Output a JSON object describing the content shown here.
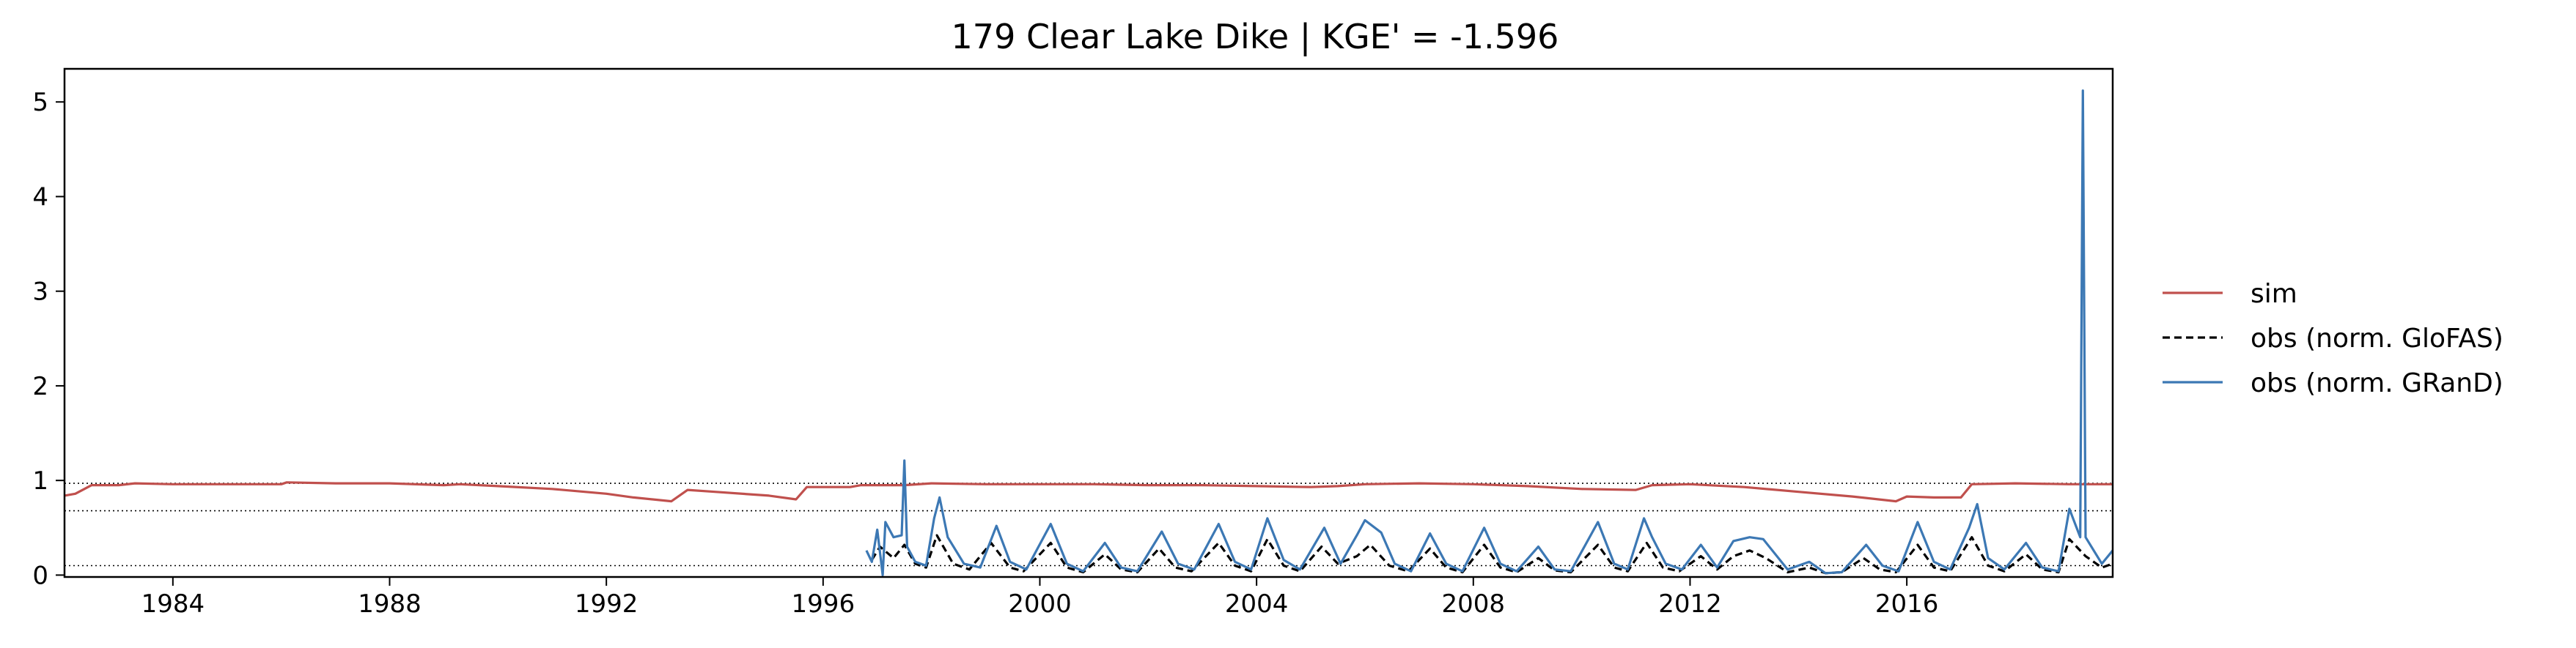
{
  "chart_data": {
    "type": "line",
    "title": "179  Clear Lake Dike | KGE' = -1.596",
    "xlabel": "",
    "ylabel": "",
    "xlim": [
      1982.0,
      2019.8
    ],
    "ylim": [
      -0.02,
      5.35
    ],
    "x_ticks": [
      1984,
      1988,
      1992,
      1996,
      2000,
      2004,
      2008,
      2012,
      2016
    ],
    "x_tick_labels": [
      "1984",
      "1988",
      "1992",
      "1996",
      "2000",
      "2004",
      "2008",
      "2012",
      "2016"
    ],
    "y_ticks": [
      0,
      1,
      2,
      3,
      4,
      5
    ],
    "y_tick_labels": [
      "0",
      "1",
      "2",
      "3",
      "4",
      "5"
    ],
    "reference_lines": [
      {
        "y": 0.97,
        "style": "dotted",
        "color": "#000000"
      },
      {
        "y": 0.68,
        "style": "dotted",
        "color": "#000000"
      },
      {
        "y": 0.1,
        "style": "dotted",
        "color": "#000000"
      }
    ],
    "legend_position": "right-outside",
    "series": [
      {
        "name": "sim",
        "color": "#c0504d",
        "style": "solid",
        "points": [
          [
            1982.0,
            0.84
          ],
          [
            1982.2,
            0.86
          ],
          [
            1982.5,
            0.95
          ],
          [
            1983.0,
            0.95
          ],
          [
            1983.3,
            0.97
          ],
          [
            1984.0,
            0.96
          ],
          [
            1985.0,
            0.96
          ],
          [
            1986.0,
            0.96
          ],
          [
            1986.1,
            0.98
          ],
          [
            1987.0,
            0.97
          ],
          [
            1988.0,
            0.97
          ],
          [
            1989.0,
            0.95
          ],
          [
            1989.3,
            0.96
          ],
          [
            1990.0,
            0.94
          ],
          [
            1991.0,
            0.91
          ],
          [
            1992.0,
            0.86
          ],
          [
            1992.5,
            0.82
          ],
          [
            1993.2,
            0.78
          ],
          [
            1993.5,
            0.9
          ],
          [
            1994.0,
            0.88
          ],
          [
            1995.0,
            0.84
          ],
          [
            1995.5,
            0.8
          ],
          [
            1995.7,
            0.93
          ],
          [
            1996.5,
            0.93
          ],
          [
            1996.7,
            0.95
          ],
          [
            1997.5,
            0.95
          ],
          [
            1998.0,
            0.97
          ],
          [
            1999.0,
            0.96
          ],
          [
            2000.0,
            0.96
          ],
          [
            2001.0,
            0.96
          ],
          [
            2002.0,
            0.95
          ],
          [
            2003.0,
            0.95
          ],
          [
            2004.0,
            0.94
          ],
          [
            2005.0,
            0.93
          ],
          [
            2005.5,
            0.94
          ],
          [
            2006.0,
            0.96
          ],
          [
            2007.0,
            0.97
          ],
          [
            2008.0,
            0.96
          ],
          [
            2009.0,
            0.94
          ],
          [
            2010.0,
            0.91
          ],
          [
            2011.0,
            0.9
          ],
          [
            2011.3,
            0.95
          ],
          [
            2012.0,
            0.96
          ],
          [
            2013.0,
            0.93
          ],
          [
            2014.0,
            0.88
          ],
          [
            2015.0,
            0.83
          ],
          [
            2015.8,
            0.78
          ],
          [
            2016.0,
            0.83
          ],
          [
            2016.5,
            0.82
          ],
          [
            2017.0,
            0.82
          ],
          [
            2017.2,
            0.96
          ],
          [
            2018.0,
            0.97
          ],
          [
            2019.0,
            0.96
          ],
          [
            2019.8,
            0.96
          ]
        ]
      },
      {
        "name": "obs (norm. GloFAS)",
        "color": "#000000",
        "style": "dashed",
        "points": [
          [
            1996.9,
            0.16
          ],
          [
            1997.05,
            0.3
          ],
          [
            1997.3,
            0.18
          ],
          [
            1997.5,
            0.32
          ],
          [
            1997.7,
            0.12
          ],
          [
            1997.9,
            0.08
          ],
          [
            1998.1,
            0.42
          ],
          [
            1998.4,
            0.12
          ],
          [
            1998.7,
            0.06
          ],
          [
            1999.1,
            0.34
          ],
          [
            1999.45,
            0.08
          ],
          [
            1999.7,
            0.04
          ],
          [
            2000.2,
            0.34
          ],
          [
            2000.5,
            0.08
          ],
          [
            2000.8,
            0.03
          ],
          [
            2001.2,
            0.22
          ],
          [
            2001.5,
            0.06
          ],
          [
            2001.8,
            0.03
          ],
          [
            2002.2,
            0.28
          ],
          [
            2002.5,
            0.08
          ],
          [
            2002.8,
            0.04
          ],
          [
            2003.3,
            0.34
          ],
          [
            2003.6,
            0.1
          ],
          [
            2003.9,
            0.04
          ],
          [
            2004.2,
            0.38
          ],
          [
            2004.5,
            0.1
          ],
          [
            2004.8,
            0.04
          ],
          [
            2005.2,
            0.3
          ],
          [
            2005.5,
            0.12
          ],
          [
            2005.85,
            0.2
          ],
          [
            2006.1,
            0.32
          ],
          [
            2006.45,
            0.1
          ],
          [
            2006.8,
            0.04
          ],
          [
            2007.2,
            0.28
          ],
          [
            2007.5,
            0.08
          ],
          [
            2007.8,
            0.03
          ],
          [
            2008.2,
            0.32
          ],
          [
            2008.5,
            0.08
          ],
          [
            2008.8,
            0.03
          ],
          [
            2009.2,
            0.18
          ],
          [
            2009.5,
            0.05
          ],
          [
            2009.8,
            0.03
          ],
          [
            2010.3,
            0.32
          ],
          [
            2010.6,
            0.08
          ],
          [
            2010.85,
            0.04
          ],
          [
            2011.2,
            0.34
          ],
          [
            2011.5,
            0.08
          ],
          [
            2011.8,
            0.04
          ],
          [
            2012.2,
            0.2
          ],
          [
            2012.5,
            0.06
          ],
          [
            2012.8,
            0.2
          ],
          [
            2013.1,
            0.26
          ],
          [
            2013.4,
            0.18
          ],
          [
            2013.8,
            0.03
          ],
          [
            2014.2,
            0.08
          ],
          [
            2014.5,
            0.02
          ],
          [
            2014.8,
            0.03
          ],
          [
            2015.2,
            0.18
          ],
          [
            2015.5,
            0.06
          ],
          [
            2015.8,
            0.03
          ],
          [
            2016.2,
            0.32
          ],
          [
            2016.5,
            0.08
          ],
          [
            2016.8,
            0.04
          ],
          [
            2017.2,
            0.4
          ],
          [
            2017.5,
            0.1
          ],
          [
            2017.8,
            0.04
          ],
          [
            2018.2,
            0.22
          ],
          [
            2018.5,
            0.06
          ],
          [
            2018.8,
            0.03
          ],
          [
            2019.0,
            0.38
          ],
          [
            2019.3,
            0.2
          ],
          [
            2019.6,
            0.08
          ],
          [
            2019.8,
            0.12
          ]
        ]
      },
      {
        "name": "obs (norm. GRanD)",
        "color": "#3c78b4",
        "style": "solid",
        "points": [
          [
            1996.8,
            0.26
          ],
          [
            1996.9,
            0.14
          ],
          [
            1997.0,
            0.48
          ],
          [
            1997.1,
            0.0
          ],
          [
            1997.15,
            0.56
          ],
          [
            1997.3,
            0.4
          ],
          [
            1997.45,
            0.42
          ],
          [
            1997.5,
            1.21
          ],
          [
            1997.55,
            0.3
          ],
          [
            1997.7,
            0.14
          ],
          [
            1997.9,
            0.1
          ],
          [
            1998.05,
            0.6
          ],
          [
            1998.15,
            0.82
          ],
          [
            1998.3,
            0.4
          ],
          [
            1998.6,
            0.12
          ],
          [
            1998.9,
            0.08
          ],
          [
            1999.2,
            0.52
          ],
          [
            1999.45,
            0.14
          ],
          [
            1999.75,
            0.06
          ],
          [
            2000.2,
            0.54
          ],
          [
            2000.5,
            0.12
          ],
          [
            2000.8,
            0.04
          ],
          [
            2001.2,
            0.34
          ],
          [
            2001.5,
            0.08
          ],
          [
            2001.8,
            0.04
          ],
          [
            2002.25,
            0.46
          ],
          [
            2002.55,
            0.12
          ],
          [
            2002.85,
            0.06
          ],
          [
            2003.3,
            0.54
          ],
          [
            2003.6,
            0.14
          ],
          [
            2003.9,
            0.06
          ],
          [
            2004.2,
            0.6
          ],
          [
            2004.5,
            0.16
          ],
          [
            2004.8,
            0.06
          ],
          [
            2005.25,
            0.5
          ],
          [
            2005.55,
            0.12
          ],
          [
            2005.85,
            0.42
          ],
          [
            2006.0,
            0.58
          ],
          [
            2006.3,
            0.45
          ],
          [
            2006.55,
            0.12
          ],
          [
            2006.85,
            0.04
          ],
          [
            2007.2,
            0.44
          ],
          [
            2007.5,
            0.12
          ],
          [
            2007.8,
            0.04
          ],
          [
            2008.2,
            0.5
          ],
          [
            2008.5,
            0.12
          ],
          [
            2008.8,
            0.04
          ],
          [
            2009.2,
            0.3
          ],
          [
            2009.5,
            0.06
          ],
          [
            2009.8,
            0.04
          ],
          [
            2010.3,
            0.56
          ],
          [
            2010.6,
            0.12
          ],
          [
            2010.85,
            0.06
          ],
          [
            2011.15,
            0.6
          ],
          [
            2011.3,
            0.4
          ],
          [
            2011.55,
            0.12
          ],
          [
            2011.85,
            0.06
          ],
          [
            2012.2,
            0.32
          ],
          [
            2012.5,
            0.08
          ],
          [
            2012.8,
            0.36
          ],
          [
            2013.1,
            0.4
          ],
          [
            2013.35,
            0.38
          ],
          [
            2013.8,
            0.06
          ],
          [
            2014.2,
            0.14
          ],
          [
            2014.5,
            0.02
          ],
          [
            2014.8,
            0.03
          ],
          [
            2015.25,
            0.32
          ],
          [
            2015.55,
            0.1
          ],
          [
            2015.85,
            0.04
          ],
          [
            2016.2,
            0.56
          ],
          [
            2016.5,
            0.14
          ],
          [
            2016.8,
            0.06
          ],
          [
            2017.15,
            0.5
          ],
          [
            2017.3,
            0.75
          ],
          [
            2017.5,
            0.18
          ],
          [
            2017.8,
            0.06
          ],
          [
            2018.2,
            0.34
          ],
          [
            2018.5,
            0.08
          ],
          [
            2018.8,
            0.04
          ],
          [
            2019.0,
            0.7
          ],
          [
            2019.2,
            0.4
          ],
          [
            2019.25,
            5.12
          ],
          [
            2019.3,
            0.4
          ],
          [
            2019.6,
            0.12
          ],
          [
            2019.8,
            0.26
          ]
        ]
      }
    ]
  }
}
